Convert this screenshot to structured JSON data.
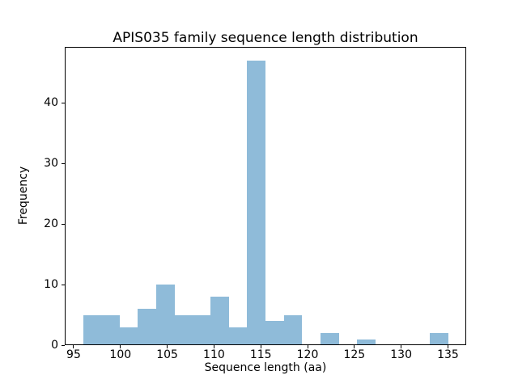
{
  "chart_data": {
    "type": "bar",
    "subtype": "histogram",
    "title": "APIS035 family sequence length distribution",
    "xlabel": "Sequence length (aa)",
    "ylabel": "Frequency",
    "bin_edges": [
      96.0,
      97.95,
      99.9,
      101.85,
      103.8,
      105.75,
      107.7,
      109.65,
      111.6,
      113.55,
      115.5,
      117.45,
      119.4,
      121.35,
      123.3,
      125.25,
      127.2,
      129.15,
      131.1,
      133.05,
      135.0
    ],
    "counts": [
      5,
      5,
      3,
      6,
      10,
      5,
      5,
      8,
      3,
      47,
      4,
      5,
      0,
      2,
      0,
      1,
      0,
      0,
      0,
      2
    ],
    "xticks": [
      95,
      100,
      105,
      110,
      115,
      120,
      125,
      130,
      135
    ],
    "yticks": [
      0,
      10,
      20,
      30,
      40
    ],
    "xlim": [
      94.05,
      136.95
    ],
    "ylim": [
      0,
      49.35
    ],
    "bar_color": "#8fbbd9",
    "axis_color": "#000000",
    "background_color": "#ffffff",
    "grid": false,
    "legend": "none"
  }
}
